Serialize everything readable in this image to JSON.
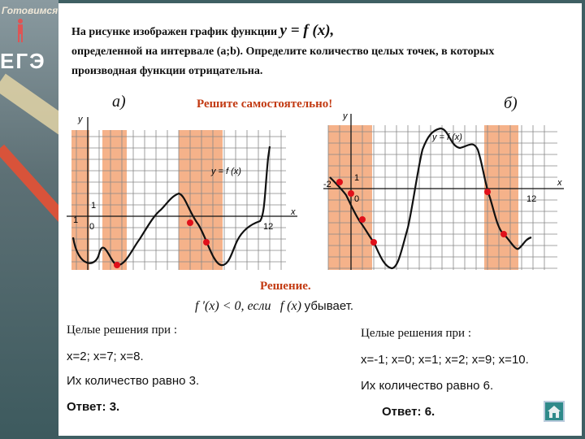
{
  "sidebar": {
    "brand": "Готовимся",
    "logo": "ЕГЭ"
  },
  "task": {
    "text1": "На рисунке изображен график функции",
    "func": "y = f (x),",
    "text2": "определенной на интервале (a;b). Определите количество целых точек, в которых производная функции отрицательна."
  },
  "panel_a": {
    "label": "а)",
    "y_axis": "y",
    "x_axis": "x",
    "tick_one_y": "1",
    "tick_one_x": "1",
    "origin": "0",
    "tick_end": "12",
    "curve_label": "y = f (x)"
  },
  "panel_b": {
    "label": "б)",
    "y_axis": "y",
    "x_axis": "x",
    "tick_one": "1",
    "tick_neg": "-2",
    "origin": "0",
    "tick_end": "12",
    "curve_label": "y = f (x)"
  },
  "self_study": "Решите самостоятельно!",
  "solution": {
    "heading": "Решение.",
    "condition_left": "f ′(x) < 0, если",
    "condition_func": "f (x)",
    "condition_right": "убывает."
  },
  "left": {
    "header": "Целые решения при :",
    "solutions": "x=2; x=7; x=8.",
    "count": "Их количество равно 3.",
    "answer": "Ответ: 3."
  },
  "right": {
    "header": "Целые решения при :",
    "solutions": "x=-1; x=0; x=1; x=2; x=9; x=10.",
    "count": "Их количество равно 6.",
    "answer": "Ответ: 6."
  },
  "colors": {
    "shade": "#f5b28a",
    "point": "#e0101a",
    "accent": "#c23a12"
  },
  "home_icon": "home-icon"
}
